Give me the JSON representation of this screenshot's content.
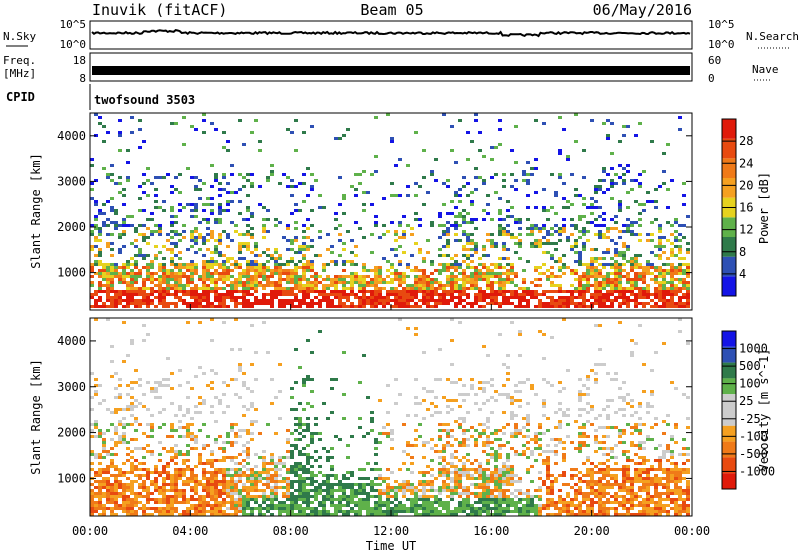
{
  "header": {
    "station": "Inuvik (fitACF)",
    "beam": "Beam 05",
    "date": "06/May/2016"
  },
  "status_panels": {
    "nsky_label": "N.Sky",
    "nsky_ticks": [
      "10^5",
      "10^0"
    ],
    "nsearch_label": "N.Search",
    "nsearch_ticks": [
      "10^5",
      "10^0"
    ],
    "freq_label_1": "Freq.",
    "freq_label_2": "[MHz]",
    "freq_ticks": [
      "18",
      "8"
    ],
    "nave_label": "Nave",
    "nave_ticks": [
      "60",
      "0"
    ],
    "cpid_label": "CPID",
    "cpid_value": "twofsound 3503"
  },
  "colors": {
    "power": [
      "#1414e6",
      "#2e50b4",
      "#2f7a4a",
      "#5fb14a",
      "#e6d21e",
      "#f5a020",
      "#f07a18",
      "#e84a10",
      "#e01a0a"
    ],
    "velocity": [
      "#e01a0a",
      "#e84a10",
      "#f07a18",
      "#f5a020",
      "#cccccc",
      "#cccccc",
      "#5fb14a",
      "#2f7a4a",
      "#2e50b4",
      "#1414e6"
    ]
  },
  "chart_data": [
    {
      "type": "heatmap",
      "title": "",
      "xlabel": "Time UT",
      "ylabel": "Slant Range [km]",
      "x_ticks": [
        "00:00",
        "04:00",
        "08:00",
        "12:00",
        "16:00",
        "20:00",
        "00:00"
      ],
      "x_range_hours": [
        0,
        24
      ],
      "y_ticks": [
        "1000",
        "2000",
        "3000",
        "4000"
      ],
      "y_range_km": [
        180,
        4500
      ],
      "colorbar_label": "Power [dB]",
      "colorbar_ticks": [
        "4",
        "8",
        "12",
        "16",
        "20",
        "24",
        "28"
      ],
      "colorbar_range": [
        0,
        30
      ]
    },
    {
      "type": "heatmap",
      "title": "",
      "xlabel": "Time UT",
      "ylabel": "Slant Range [km]",
      "x_ticks": [
        "00:00",
        "04:00",
        "08:00",
        "12:00",
        "16:00",
        "20:00",
        "00:00"
      ],
      "x_range_hours": [
        0,
        24
      ],
      "y_ticks": [
        "1000",
        "2000",
        "3000",
        "4000"
      ],
      "y_range_km": [
        180,
        4500
      ],
      "colorbar_label": "Velocity [m s^-1]",
      "colorbar_ticks": [
        "1000",
        "500",
        "100",
        "25",
        "-25",
        "-100",
        "-500",
        "-1000"
      ]
    }
  ]
}
